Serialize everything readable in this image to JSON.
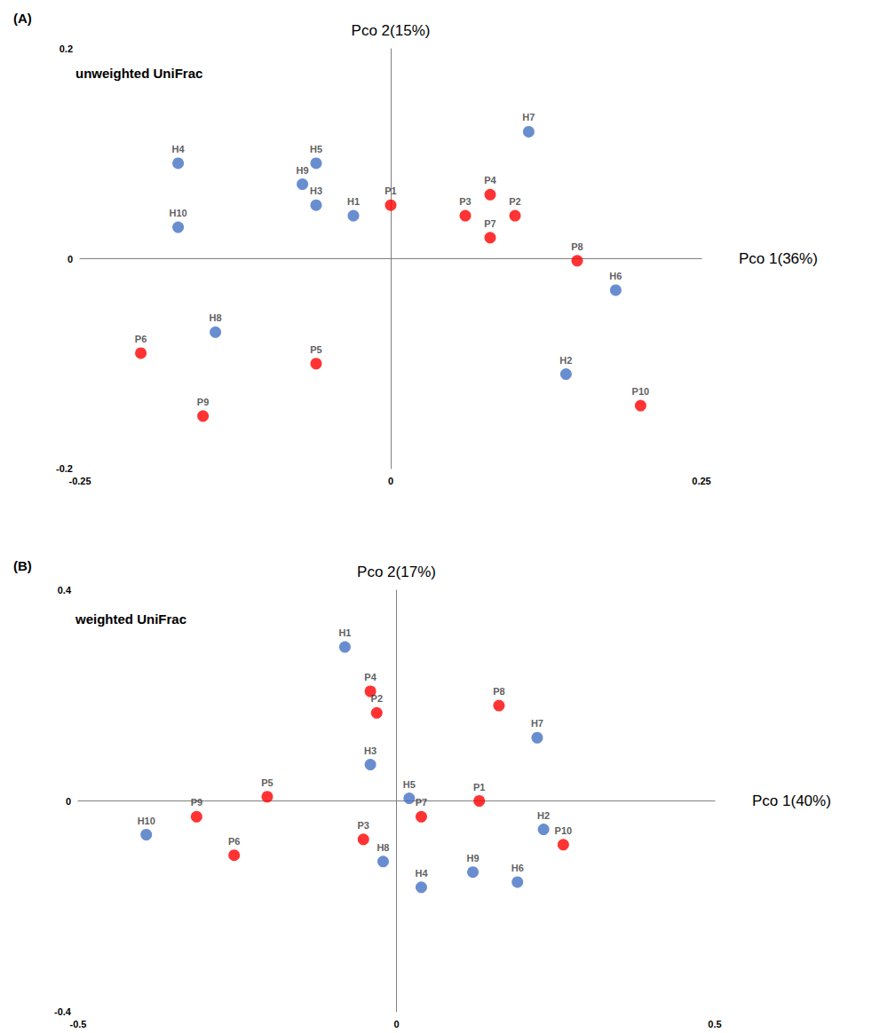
{
  "chart_data": [
    {
      "type": "scatter",
      "title": "(A)",
      "subtitle": "unweighted UniFrac",
      "x_label": "Pco 1(36%)",
      "y_label": "Pco 2(15%)",
      "xlim": [
        -0.25,
        0.25
      ],
      "xticks": [
        -0.25,
        0,
        0.25
      ],
      "ylim": [
        -0.2,
        0.2
      ],
      "yticks": [
        -0.2,
        0,
        0.2
      ],
      "grid": false,
      "data_labels": true,
      "series": [
        {
          "color": "#4472c4",
          "marker": "circle",
          "labels": [
            "H1",
            "H2",
            "H3",
            "H4",
            "H5",
            "H6",
            "H7",
            "H8",
            "H9",
            "H10"
          ],
          "x": [
            -0.03,
            0.141,
            -0.06,
            -0.171,
            -0.06,
            0.181,
            0.111,
            -0.141,
            -0.071,
            -0.171
          ],
          "values": [
            0.041,
            -0.11,
            0.051,
            0.091,
            0.091,
            -0.03,
            0.121,
            -0.07,
            0.071,
            0.03
          ]
        },
        {
          "color": "#ff0000",
          "marker": "circle",
          "labels": [
            "P1",
            "P2",
            "P3",
            "P4",
            "P5",
            "P6",
            "P7",
            "P8",
            "P9",
            "P10"
          ],
          "x": [
            0.0,
            0.1,
            0.06,
            0.08,
            -0.06,
            -0.201,
            0.08,
            0.15,
            -0.151,
            0.201
          ],
          "values": [
            0.051,
            0.041,
            0.041,
            0.061,
            -0.1,
            -0.09,
            0.02,
            -0.002,
            -0.15,
            -0.14
          ]
        }
      ]
    },
    {
      "type": "scatter",
      "title": "(B)",
      "subtitle": "weighted UniFrac",
      "x_label": "Pco 1(40%)",
      "y_label": "Pco 2(17%)",
      "xlim": [
        -0.5,
        0.5
      ],
      "xticks": [
        -0.5,
        0,
        0.5
      ],
      "ylim": [
        -0.4,
        0.4
      ],
      "yticks": [
        -0.4,
        0,
        0.4
      ],
      "grid": false,
      "data_labels": true,
      "series": [
        {
          "color": "#4472c4",
          "marker": "circle",
          "labels": [
            "H1",
            "H2",
            "H3",
            "H4",
            "H5",
            "H6",
            "H7",
            "H8",
            "H9",
            "H10"
          ],
          "x": [
            -0.081,
            0.231,
            -0.041,
            0.039,
            0.02,
            0.19,
            0.221,
            -0.021,
            0.12,
            -0.393
          ],
          "values": [
            0.292,
            -0.054,
            0.069,
            -0.164,
            0.005,
            -0.154,
            0.12,
            -0.115,
            -0.135,
            -0.064
          ]
        },
        {
          "color": "#ff0000",
          "marker": "circle",
          "labels": [
            "P1",
            "P2",
            "P3",
            "P4",
            "P5",
            "P6",
            "P7",
            "P8",
            "P9",
            "P10"
          ],
          "x": [
            0.13,
            -0.031,
            -0.052,
            -0.041,
            -0.203,
            -0.255,
            0.039,
            0.161,
            -0.314,
            0.262
          ],
          "values": [
            0.0,
            0.167,
            -0.073,
            0.208,
            0.008,
            -0.103,
            -0.03,
            0.181,
            -0.03,
            -0.083
          ]
        }
      ]
    }
  ]
}
